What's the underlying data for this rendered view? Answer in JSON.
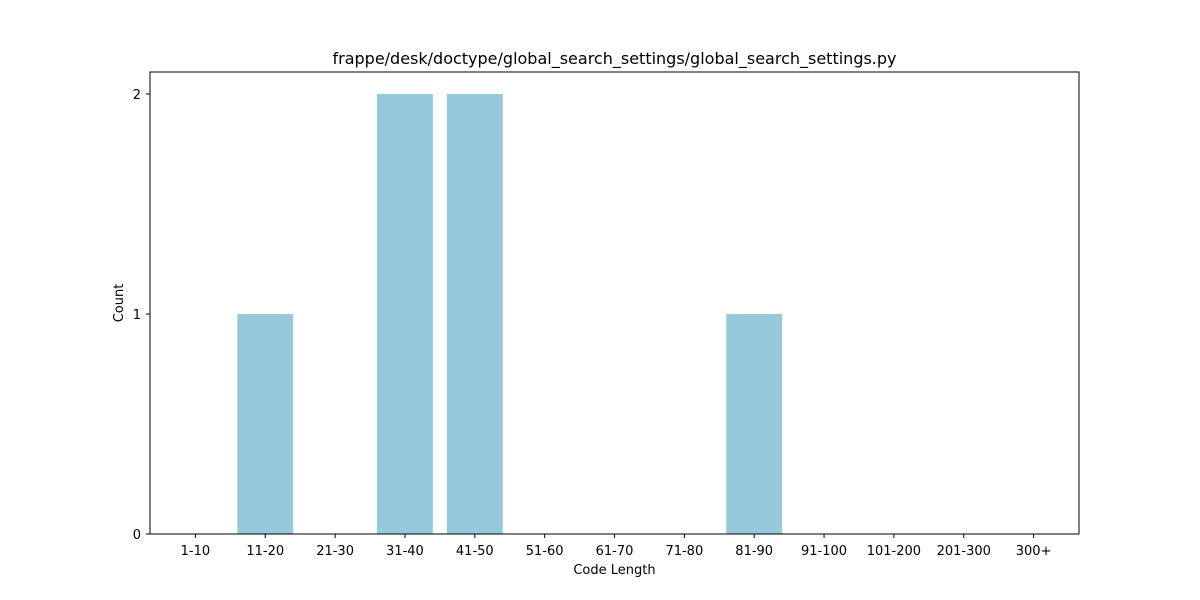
{
  "chart_data": {
    "type": "bar",
    "title": "frappe/desk/doctype/global_search_settings/global_search_settings.py",
    "xlabel": "Code Length",
    "ylabel": "Count",
    "categories": [
      "1-10",
      "11-20",
      "21-30",
      "31-40",
      "41-50",
      "51-60",
      "61-70",
      "71-80",
      "81-90",
      "91-100",
      "101-200",
      "201-300",
      "300+"
    ],
    "values": [
      0,
      1,
      0,
      2,
      2,
      0,
      0,
      0,
      1,
      0,
      0,
      0,
      0
    ],
    "yticks": [
      0,
      1,
      2
    ],
    "ylim": [
      0,
      2.1
    ],
    "grid": false,
    "bar_color": "#96c9dc"
  }
}
